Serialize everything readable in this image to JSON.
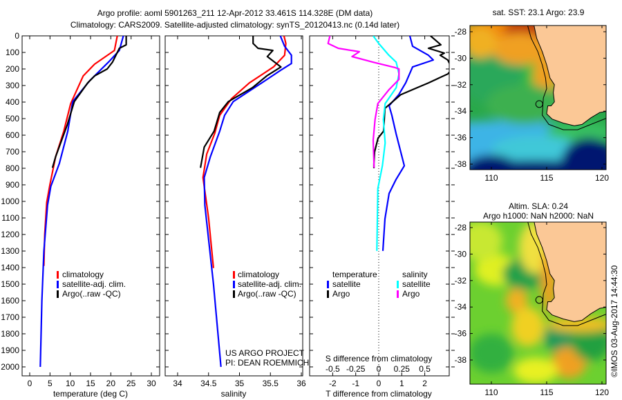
{
  "header": {
    "title_line1": "Argo profile: aoml 5901263_211 12-Apr-2012 33.461S 114.328E (DM data)",
    "title_line2": "Climatology: CARS2009. Satellite-adjusted climatology: synTS_20120413.nc (0.14d later)"
  },
  "colors": {
    "climatology": "#ff0000",
    "satellite": "#0000ff",
    "argo": "#000000",
    "salinity_satellite": "#00ffff",
    "salinity_argo": "#ff00ff",
    "land": "#fbc896"
  },
  "chart_data": [
    {
      "type": "line",
      "title": "",
      "xlabel": "temperature (deg C)",
      "ylabel": "",
      "xlim": [
        -1.5,
        31.5
      ],
      "ylim": [
        2000,
        0
      ],
      "xticks": [
        "0",
        "5",
        "10",
        "15",
        "20",
        "25",
        "30"
      ],
      "yticks": [
        "0",
        "100",
        "200",
        "300",
        "400",
        "500",
        "600",
        "700",
        "800",
        "900",
        "1000",
        "1100",
        "1200",
        "1300",
        "1400",
        "1500",
        "1600",
        "1700",
        "1800",
        "1900",
        "2000"
      ],
      "legend": [
        "climatology",
        "satellite-adj. clim.",
        "Argo(..raw -QC)"
      ],
      "series": [
        {
          "name": "climatology",
          "depth": [
            0,
            88,
            171,
            242,
            409,
            576,
            730,
            897,
            1006,
            1200,
            1390
          ],
          "values": [
            21.6,
            20.9,
            16.0,
            13.2,
            10.1,
            8.4,
            6.4,
            5.0,
            4.2,
            3.7,
            3.5
          ]
        },
        {
          "name": "satellite-adj. clim.",
          "depth": [
            0,
            88,
            159,
            271,
            397,
            576,
            772,
            910,
            1023,
            1300,
            1600,
            2000
          ],
          "values": [
            23.1,
            22.1,
            19.4,
            14.8,
            10.6,
            9.4,
            7.3,
            5.2,
            4.4,
            3.5,
            3.0,
            2.6
          ]
        },
        {
          "name": "Argo(..raw -QC)",
          "depth": [
            0,
            54,
            75,
            159,
            200,
            242,
            284,
            397,
            534,
            730,
            797
          ],
          "values": [
            23.8,
            23.8,
            22.1,
            20.4,
            19.1,
            16.0,
            14.3,
            11.0,
            9.3,
            6.4,
            5.6
          ]
        }
      ]
    },
    {
      "type": "line",
      "xlabel": "salinity",
      "xlim": [
        33.8,
        36.05
      ],
      "ylim": [
        2000,
        0
      ],
      "xticks": [
        "34",
        "34.5",
        "35",
        "35.5",
        "36"
      ],
      "legend": [
        "climatology",
        "satellite-adj. clim.",
        "Argo(..raw -QC)"
      ],
      "annotation_line1": "US ARGO PROJECT",
      "annotation_line2": "PI: DEAN ROEMMICH",
      "series": [
        {
          "name": "climatology",
          "depth": [
            0,
            46,
            117,
            188,
            284,
            380,
            480,
            589,
            714,
            856,
            1100,
            1403
          ],
          "values": [
            35.72,
            35.75,
            35.73,
            35.55,
            35.16,
            34.87,
            34.68,
            34.6,
            34.47,
            34.41,
            34.5,
            34.58
          ]
        },
        {
          "name": "satellite-adj. clim.",
          "depth": [
            0,
            63,
            117,
            167,
            209,
            284,
            397,
            480,
            576,
            730,
            856,
            1023,
            1500,
            2000
          ],
          "values": [
            35.66,
            35.73,
            35.84,
            35.84,
            35.66,
            35.36,
            34.9,
            34.76,
            34.68,
            34.53,
            34.43,
            34.44,
            34.58,
            34.7
          ]
        },
        {
          "name": "Argo(..raw -QC)",
          "depth": [
            0,
            46,
            75,
            88,
            125,
            188,
            242,
            313,
            397,
            463,
            576,
            672,
            797
          ],
          "values": [
            35.22,
            35.22,
            35.3,
            35.54,
            35.45,
            35.67,
            35.44,
            35.21,
            34.82,
            34.68,
            34.59,
            34.43,
            34.37
          ]
        }
      ]
    },
    {
      "type": "line",
      "xlabel": "T difference from climatology",
      "xlabel2": "S difference from climatology",
      "xlim": [
        -3,
        3
      ],
      "xlim2": [
        -0.75,
        0.75
      ],
      "ylim": [
        2000,
        0
      ],
      "xticks": [
        "-2",
        "-1",
        "0",
        "1",
        "2"
      ],
      "xticks2": [
        "-0.5",
        "-0.25",
        "0",
        "0.25",
        "0.5"
      ],
      "legend_temperature_header": "temperature",
      "legend_salinity_header": "salinity",
      "legend": [
        "satellite",
        "Argo",
        "satellite",
        "Argo"
      ],
      "series": [
        {
          "name": "temperature satellite",
          "axis": "T",
          "depth": [
            0,
            63,
            117,
            146,
            188,
            284,
            355,
            422,
            480,
            589,
            785,
            868,
            952,
            1106,
            1299
          ],
          "values": [
            1.35,
            1.47,
            2.16,
            2.37,
            1.47,
            1.17,
            0.87,
            0.45,
            0.57,
            0.75,
            1.11,
            0.75,
            0.45,
            0.27,
            0.18
          ]
        },
        {
          "name": "temperature Argo",
          "axis": "T",
          "depth": [
            0,
            54,
            75,
            104,
            117,
            146,
            200,
            230,
            284,
            355,
            438,
            576,
            618,
            701,
            772,
            800
          ],
          "values": [
            2.25,
            2.7,
            2.16,
            2.85,
            2.67,
            3.0,
            3.2,
            3.0,
            2.16,
            0.96,
            0.27,
            0.21,
            -0.03,
            -0.18,
            -0.21,
            -0.21
          ]
        },
        {
          "name": "salinity satellite",
          "axis": "S",
          "depth": [
            0,
            46,
            117,
            159,
            230,
            313,
            409,
            505,
            647,
            785,
            923,
            1299
          ],
          "values": [
            -0.06,
            0.0,
            0.11,
            0.19,
            0.22,
            0.19,
            0.07,
            0.05,
            0.07,
            0.04,
            -0.01,
            -0.02
          ]
        },
        {
          "name": "salinity Argo",
          "axis": "S",
          "depth": [
            0,
            46,
            75,
            96,
            125,
            159,
            192,
            200,
            263,
            326,
            409,
            505,
            630,
            797
          ],
          "values": [
            -0.53,
            -0.55,
            -0.44,
            -0.21,
            -0.29,
            -0.06,
            0.18,
            0.22,
            0.22,
            0.11,
            -0.01,
            -0.04,
            -0.06,
            -0.05
          ]
        }
      ]
    }
  ],
  "maps": {
    "sst": {
      "title": "sat. SST: 23.1 Argo: 23.9"
    },
    "sla": {
      "title_line1": "Altim. SLA: 0.24",
      "title_line2": "Argo h1000: NaN h2000: NaN"
    },
    "lat_ticks": [
      "-28",
      "-30",
      "-32",
      "-34",
      "-36",
      "-38"
    ],
    "lon_ticks": [
      "110",
      "115",
      "120"
    ],
    "argo_position": {
      "lon": 114.328,
      "lat": -33.461
    }
  },
  "footer": {
    "credit": "©IMOS 03-Aug-2017 14:44:30"
  }
}
